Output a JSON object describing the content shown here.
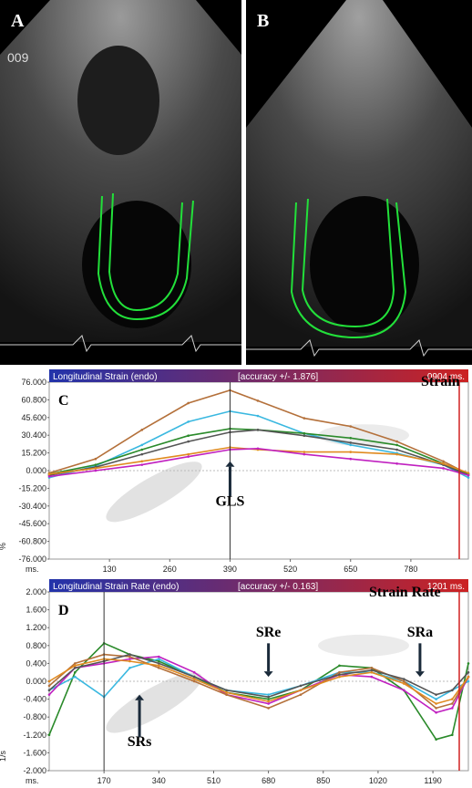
{
  "echo_panels": [
    {
      "label": "A",
      "overlay_text": "009"
    },
    {
      "label": "B",
      "overlay_text": ""
    }
  ],
  "colors": {
    "trace_green": "#22e03a",
    "brown": "#b4703a",
    "cyan": "#3ab8e0",
    "dark_green": "#2a8a2a",
    "orange": "#e08a20",
    "magenta": "#c020c0",
    "dark_gray": "#555555",
    "header_blue": "#2233aa",
    "header_red": "#cc2222",
    "marker_line": "#d02020",
    "annotation_gray": "#888888"
  },
  "chart_data": [
    {
      "panel_label": "C",
      "type": "line",
      "header_title": "Longitudinal Strain (endo)",
      "header_accuracy": "[accuracy +/- 1.876]",
      "header_time": "0904 ms.",
      "label": "Strain",
      "ylabel": "%",
      "x_unit_label": "ms.",
      "ylim": [
        -76,
        76
      ],
      "xlim": [
        0,
        904
      ],
      "y_ticks": [
        "76.000",
        "60.800",
        "45.600",
        "30.400",
        "15.200",
        "0.000",
        "-15.200",
        "-30.400",
        "-45.600",
        "-60.800",
        "-76.000"
      ],
      "x_ticks": [
        "130",
        "260",
        "390",
        "520",
        "650",
        "780"
      ],
      "x_tick_values": [
        130,
        260,
        390,
        520,
        650,
        780
      ],
      "annotations": [
        {
          "text": "GLS",
          "x": 390
        }
      ],
      "series": [
        {
          "color": "#b4703a",
          "x": [
            0,
            100,
            200,
            300,
            390,
            450,
            550,
            650,
            750,
            850,
            904
          ],
          "values": [
            -2,
            10,
            35,
            58,
            69,
            60,
            45,
            38,
            25,
            8,
            -3
          ]
        },
        {
          "color": "#3ab8e0",
          "x": [
            0,
            100,
            200,
            300,
            390,
            450,
            550,
            650,
            750,
            850,
            904
          ],
          "values": [
            -6,
            4,
            22,
            42,
            51,
            47,
            32,
            22,
            15,
            5,
            -6
          ]
        },
        {
          "color": "#2a8a2a",
          "x": [
            0,
            100,
            200,
            300,
            390,
            450,
            550,
            650,
            750,
            850,
            904
          ],
          "values": [
            -3,
            5,
            18,
            30,
            36,
            35,
            32,
            28,
            22,
            6,
            -3
          ]
        },
        {
          "color": "#555555",
          "x": [
            0,
            100,
            200,
            300,
            390,
            450,
            550,
            650,
            750,
            850,
            904
          ],
          "values": [
            -4,
            3,
            14,
            25,
            33,
            35,
            30,
            24,
            18,
            5,
            -4
          ]
        },
        {
          "color": "#e08a20",
          "x": [
            0,
            100,
            200,
            300,
            390,
            450,
            550,
            650,
            750,
            850,
            904
          ],
          "values": [
            -3,
            2,
            8,
            14,
            20,
            18,
            16,
            16,
            14,
            6,
            -2
          ]
        },
        {
          "color": "#c020c0",
          "x": [
            0,
            100,
            200,
            300,
            390,
            450,
            550,
            650,
            750,
            850,
            904
          ],
          "values": [
            -5,
            0,
            5,
            12,
            18,
            19,
            14,
            10,
            6,
            2,
            -4
          ]
        }
      ]
    },
    {
      "panel_label": "D",
      "type": "line",
      "header_title": "Longitudinal Strain Rate (endo)",
      "header_accuracy": "[accuracy +/- 0.163]",
      "header_time": "1201 ms.",
      "label": "Strain Rate",
      "ylabel": "1/s",
      "x_unit_label": "ms.",
      "ylim": [
        -2,
        2
      ],
      "xlim": [
        0,
        1300
      ],
      "y_ticks": [
        "2.000",
        "1.600",
        "1.200",
        "0.800",
        "0.400",
        "0.000",
        "-0.400",
        "-0.800",
        "-1.200",
        "-1.600",
        "-2.000"
      ],
      "x_ticks": [
        "170",
        "340",
        "510",
        "680",
        "850",
        "1020",
        "1190"
      ],
      "x_tick_values": [
        170,
        340,
        510,
        680,
        850,
        1020,
        1190
      ],
      "annotations": [
        {
          "text": "SRe",
          "x": 680
        },
        {
          "text": "SRa",
          "x": 1150
        },
        {
          "text": "SRs",
          "x": 280
        }
      ],
      "series": [
        {
          "color": "#2a8a2a",
          "x": [
            0,
            80,
            170,
            250,
            340,
            450,
            550,
            680,
            780,
            900,
            1000,
            1100,
            1200,
            1250,
            1300
          ],
          "values": [
            -1.2,
            0.2,
            0.85,
            0.6,
            0.45,
            0.1,
            -0.25,
            -0.4,
            -0.2,
            0.35,
            0.3,
            -0.2,
            -1.3,
            -1.2,
            0.4
          ]
        },
        {
          "color": "#3ab8e0",
          "x": [
            0,
            80,
            170,
            250,
            340,
            450,
            550,
            680,
            780,
            900,
            1000,
            1100,
            1200,
            1250,
            1300
          ],
          "values": [
            -0.2,
            0.1,
            -0.35,
            0.3,
            0.5,
            0.1,
            -0.2,
            -0.3,
            -0.1,
            0.2,
            0.2,
            0.0,
            -0.4,
            -0.2,
            0.0
          ]
        },
        {
          "color": "#c020c0",
          "x": [
            0,
            80,
            170,
            250,
            340,
            450,
            550,
            680,
            780,
            900,
            1000,
            1100,
            1200,
            1250,
            1300
          ],
          "values": [
            -0.3,
            0.3,
            0.4,
            0.5,
            0.55,
            0.2,
            -0.3,
            -0.5,
            -0.2,
            0.15,
            0.1,
            -0.2,
            -0.7,
            -0.6,
            0.1
          ]
        },
        {
          "color": "#b4703a",
          "x": [
            0,
            80,
            170,
            250,
            340,
            450,
            550,
            680,
            780,
            900,
            1000,
            1100,
            1200,
            1250,
            1300
          ],
          "values": [
            -0.1,
            0.4,
            0.6,
            0.55,
            0.3,
            0.0,
            -0.3,
            -0.6,
            -0.3,
            0.2,
            0.3,
            0.0,
            -0.6,
            -0.5,
            0.1
          ]
        },
        {
          "color": "#555555",
          "x": [
            0,
            80,
            170,
            250,
            340,
            450,
            550,
            680,
            780,
            900,
            1000,
            1100,
            1200,
            1250,
            1300
          ],
          "values": [
            -0.2,
            0.3,
            0.45,
            0.6,
            0.4,
            0.1,
            -0.2,
            -0.35,
            -0.1,
            0.15,
            0.25,
            0.05,
            -0.3,
            -0.2,
            0.2
          ]
        },
        {
          "color": "#e08a20",
          "x": [
            0,
            80,
            170,
            250,
            340,
            450,
            550,
            680,
            780,
            900,
            1000,
            1100,
            1200,
            1250,
            1300
          ],
          "values": [
            0.0,
            0.35,
            0.5,
            0.45,
            0.35,
            0.05,
            -0.25,
            -0.45,
            -0.2,
            0.1,
            0.2,
            -0.05,
            -0.5,
            -0.4,
            0.1
          ]
        }
      ]
    }
  ]
}
